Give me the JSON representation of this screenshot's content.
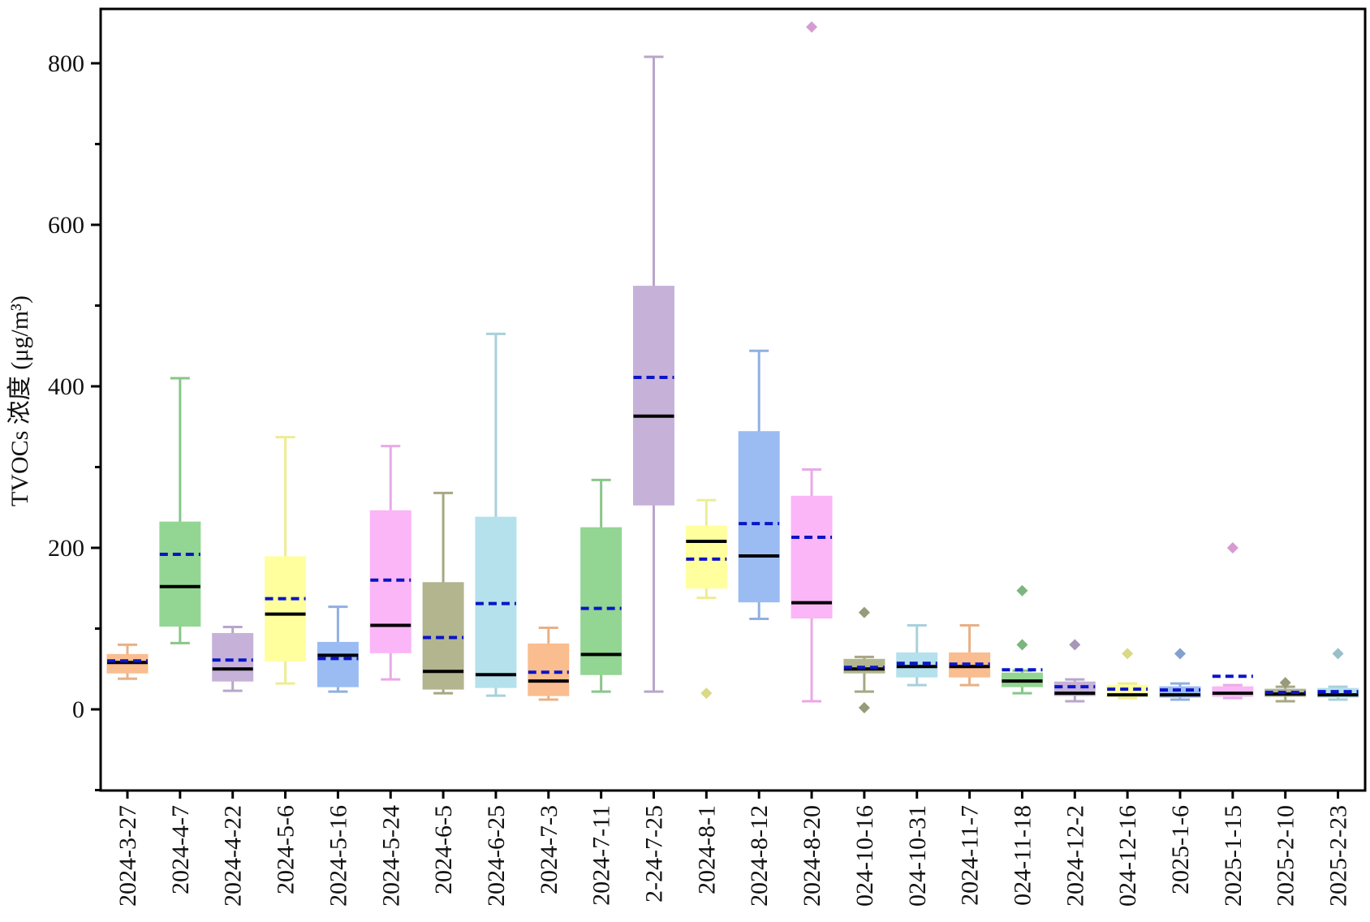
{
  "chart_data": {
    "type": "box",
    "title": "",
    "xlabel": "",
    "ylabel": "TVOCs 浓度 (μg/m³)",
    "ylim": [
      -100,
      860
    ],
    "yticks": [
      0,
      200,
      400,
      600,
      800
    ],
    "legend": "none",
    "categories": [
      "2024-3-27",
      "2024-4-7",
      "2024-4-22",
      "2024-5-6",
      "2024-5-16",
      "2024-5-24",
      "2024-6-5",
      "2024-6-25",
      "2024-7-3",
      "2024-7-11",
      "2-24-7-25",
      "2024-8-1",
      "2024-8-12",
      "2024-8-20",
      "024-10-16",
      "024-10-31",
      "2024-11-7",
      "024-11-18",
      "2024-12-2",
      "024-12-16",
      "2025-1-6",
      "2025-1-15",
      "2025-2-10",
      "2025-2-23"
    ],
    "boxes": [
      {
        "whisker_low": 38,
        "q1": 45,
        "median": 58,
        "mean": 60,
        "q3": 68,
        "whisker_high": 80,
        "color": "#f9bd8f",
        "outliers": []
      },
      {
        "whisker_low": 82,
        "q1": 103,
        "median": 152,
        "mean": 192,
        "q3": 232,
        "whisker_high": 410,
        "color": "#93d593",
        "outliers": []
      },
      {
        "whisker_low": 23,
        "q1": 35,
        "median": 50,
        "mean": 61,
        "q3": 94,
        "whisker_high": 102,
        "color": "#c6b2d9",
        "outliers": []
      },
      {
        "whisker_low": 32,
        "q1": 60,
        "median": 118,
        "mean": 137,
        "q3": 189,
        "whisker_high": 337,
        "color": "#ffff9e",
        "outliers": []
      },
      {
        "whisker_low": 22,
        "q1": 28,
        "median": 67,
        "mean": 63,
        "q3": 83,
        "whisker_high": 127,
        "color": "#9bbcf2",
        "outliers": []
      },
      {
        "whisker_low": 37,
        "q1": 70,
        "median": 104,
        "mean": 160,
        "q3": 246,
        "whisker_high": 326,
        "color": "#fbb6f7",
        "outliers": []
      },
      {
        "whisker_low": 20,
        "q1": 25,
        "median": 47,
        "mean": 89,
        "q3": 157,
        "whisker_high": 268,
        "color": "#b3b58f",
        "outliers": []
      },
      {
        "whisker_low": 17,
        "q1": 27,
        "median": 43,
        "mean": 131,
        "q3": 238,
        "whisker_high": 465,
        "color": "#b4e1ec",
        "outliers": []
      },
      {
        "whisker_low": 12,
        "q1": 17,
        "median": 35,
        "mean": 46,
        "q3": 81,
        "whisker_high": 101,
        "color": "#f9bd8f",
        "outliers": []
      },
      {
        "whisker_low": 22,
        "q1": 43,
        "median": 68,
        "mean": 125,
        "q3": 225,
        "whisker_high": 284,
        "color": "#93d593",
        "outliers": []
      },
      {
        "whisker_low": 22,
        "q1": 253,
        "median": 363,
        "mean": 411,
        "q3": 524,
        "whisker_high": 808,
        "color": "#c6b2d9",
        "outliers": []
      },
      {
        "whisker_low": 138,
        "q1": 150,
        "median": 208,
        "mean": 186,
        "q3": 227,
        "whisker_high": 259,
        "color": "#ffff9e",
        "outliers": [
          20
        ]
      },
      {
        "whisker_low": 112,
        "q1": 133,
        "median": 190,
        "mean": 230,
        "q3": 344,
        "whisker_high": 444,
        "color": "#9bbcf2",
        "outliers": []
      },
      {
        "whisker_low": 10,
        "q1": 113,
        "median": 132,
        "mean": 213,
        "q3": 264,
        "whisker_high": 297,
        "color": "#fbb6f7",
        "outliers": [
          845
        ]
      },
      {
        "whisker_low": 22,
        "q1": 45,
        "median": 50,
        "mean": 52,
        "q3": 62,
        "whisker_high": 65,
        "color": "#b3b58f",
        "outliers": [
          120,
          2
        ]
      },
      {
        "whisker_low": 30,
        "q1": 40,
        "median": 53,
        "mean": 57,
        "q3": 70,
        "whisker_high": 104,
        "color": "#b4e1ec",
        "outliers": []
      },
      {
        "whisker_low": 30,
        "q1": 40,
        "median": 53,
        "mean": 56,
        "q3": 70,
        "whisker_high": 104,
        "color": "#f9bd8f",
        "outliers": []
      },
      {
        "whisker_low": 20,
        "q1": 28,
        "median": 35,
        "mean": 49,
        "q3": 45,
        "whisker_high": 48,
        "color": "#93d593",
        "outliers": [
          147,
          80
        ]
      },
      {
        "whisker_low": 10,
        "q1": 17,
        "median": 20,
        "mean": 28,
        "q3": 34,
        "whisker_high": 37,
        "color": "#c6b2d9",
        "outliers": [
          80
        ]
      },
      {
        "whisker_low": 14,
        "q1": 16,
        "median": 18,
        "mean": 25,
        "q3": 30,
        "whisker_high": 32,
        "color": "#ffff9e",
        "outliers": [
          69
        ]
      },
      {
        "whisker_low": 12,
        "q1": 15,
        "median": 18,
        "mean": 24,
        "q3": 28,
        "whisker_high": 32,
        "color": "#9bbcf2",
        "outliers": [
          69
        ]
      },
      {
        "whisker_low": 14,
        "q1": 16,
        "median": 20,
        "mean": 41,
        "q3": 28,
        "whisker_high": 30,
        "color": "#fbb6f7",
        "outliers": [
          200
        ]
      },
      {
        "whisker_low": 10,
        "q1": 16,
        "median": 19,
        "mean": 21,
        "q3": 25,
        "whisker_high": 28,
        "color": "#b3b58f",
        "outliers": [
          33
        ]
      },
      {
        "whisker_low": 12,
        "q1": 15,
        "median": 18,
        "mean": 22,
        "q3": 26,
        "whisker_high": 28,
        "color": "#b4e1ec",
        "outliers": [
          69
        ]
      }
    ],
    "median_line_color": "#000000",
    "mean_line_color": "#0a14c8"
  }
}
